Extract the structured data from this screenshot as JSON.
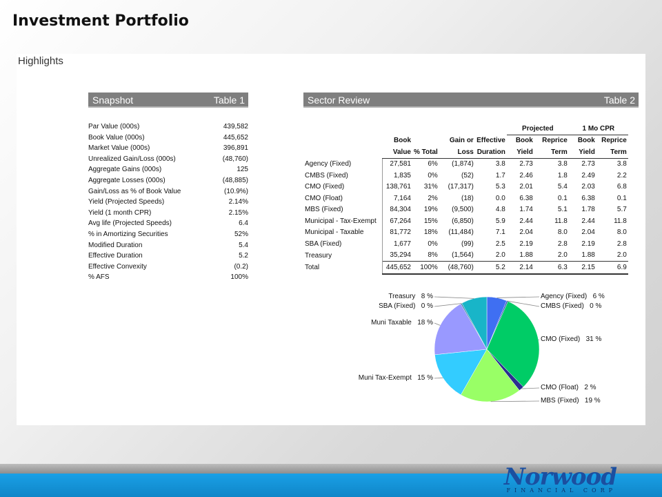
{
  "title": "Investment Portfolio",
  "section": "Highlights",
  "snapshot": {
    "header_left": "Snapshot",
    "header_right": "Table 1",
    "rows": [
      {
        "label": "Par Value (000s)",
        "value": "439,582"
      },
      {
        "label": "Book Value (000s)",
        "value": "445,652"
      },
      {
        "label": "Market Value (000s)",
        "value": "396,891"
      },
      {
        "label": "Unrealized Gain/Loss (000s)",
        "value": "(48,760)"
      },
      {
        "label": "Aggregate Gains (000s)",
        "value": "125"
      },
      {
        "label": "Aggregate Losses (000s)",
        "value": "(48,885)"
      },
      {
        "label": "Gain/Loss as % of Book Value",
        "value": "(10.9%)"
      },
      {
        "label": "Yield (Projected Speeds)",
        "value": "2.14%"
      },
      {
        "label": "Yield (1 month CPR)",
        "value": "2.15%"
      },
      {
        "label": "Avg life (Projected Speeds)",
        "value": "6.4"
      },
      {
        "label": "% in Amortizing Securities",
        "value": "52%"
      },
      {
        "label": "Modified Duration",
        "value": "5.4"
      },
      {
        "label": "Effective Duration",
        "value": "5.2"
      },
      {
        "label": "Effective Convexity",
        "value": "(0.2)"
      },
      {
        "label": "% AFS",
        "value": "100%"
      }
    ]
  },
  "sector": {
    "header_left": "Sector Review",
    "header_right": "Table 2",
    "group_projected": "Projected",
    "group_cpr": "1 Mo CPR",
    "col_h1": [
      "Book",
      "",
      "Gain or",
      "Effective",
      "Book",
      "Reprice",
      "Book",
      "Reprice"
    ],
    "col_h2": [
      "Value",
      "% Total",
      "Loss",
      "Duration",
      "Yield",
      "Term",
      "Yield",
      "Term"
    ],
    "rows": [
      {
        "label": "Agency (Fixed)",
        "cells": [
          "27,581",
          "6%",
          "(1,874)",
          "3.8",
          "2.73",
          "3.8",
          "2.73",
          "3.8"
        ]
      },
      {
        "label": "CMBS (Fixed)",
        "cells": [
          "1,835",
          "0%",
          "(52)",
          "1.7",
          "2.46",
          "1.8",
          "2.49",
          "2.2"
        ]
      },
      {
        "label": "CMO (Fixed)",
        "cells": [
          "138,761",
          "31%",
          "(17,317)",
          "5.3",
          "2.01",
          "5.4",
          "2.03",
          "6.8"
        ]
      },
      {
        "label": "CMO (Float)",
        "cells": [
          "7,164",
          "2%",
          "(18)",
          "0.0",
          "6.38",
          "0.1",
          "6.38",
          "0.1"
        ]
      },
      {
        "label": "MBS (Fixed)",
        "cells": [
          "84,304",
          "19%",
          "(9,500)",
          "4.8",
          "1.74",
          "5.1",
          "1.78",
          "5.7"
        ]
      },
      {
        "label": "Municipal - Tax-Exempt",
        "cells": [
          "67,264",
          "15%",
          "(6,850)",
          "5.9",
          "2.44",
          "11.8",
          "2.44",
          "11.8"
        ]
      },
      {
        "label": "Municipal - Taxable",
        "cells": [
          "81,772",
          "18%",
          "(11,484)",
          "7.1",
          "2.04",
          "8.0",
          "2.04",
          "8.0"
        ]
      },
      {
        "label": "SBA (Fixed)",
        "cells": [
          "1,677",
          "0%",
          "(99)",
          "2.5",
          "2.19",
          "2.8",
          "2.19",
          "2.8"
        ]
      },
      {
        "label": "Treasury",
        "cells": [
          "35,294",
          "8%",
          "(1,564)",
          "2.0",
          "1.88",
          "2.0",
          "1.88",
          "2.0"
        ]
      }
    ],
    "total": {
      "label": "Total",
      "cells": [
        "445,652",
        "100%",
        "(48,760)",
        "5.2",
        "2.14",
        "6.3",
        "2.15",
        "6.9"
      ]
    }
  },
  "chart_data": {
    "type": "pie",
    "title": "",
    "slices": [
      {
        "name": "Agency (Fixed)",
        "pct_label": "6 %",
        "value": 27581,
        "color": "#3f6ff2"
      },
      {
        "name": "CMBS (Fixed)",
        "pct_label": "0 %",
        "value": 1835,
        "color": "#2d44b8"
      },
      {
        "name": "CMO (Fixed)",
        "pct_label": "31 %",
        "value": 138761,
        "color": "#00cc66"
      },
      {
        "name": "CMO (Float)",
        "pct_label": "2 %",
        "value": 7164,
        "color": "#2b2f8f"
      },
      {
        "name": "MBS (Fixed)",
        "pct_label": "19 %",
        "value": 84304,
        "color": "#99ff66"
      },
      {
        "name": "Muni Tax-Exempt",
        "pct_label": "15 %",
        "value": 67264,
        "color": "#33ccff"
      },
      {
        "name": "Muni Taxable",
        "pct_label": "18 %",
        "value": 81772,
        "color": "#9999ff"
      },
      {
        "name": "SBA (Fixed)",
        "pct_label": "0 %",
        "value": 1677,
        "color": "#2c7ea0"
      },
      {
        "name": "Treasury",
        "pct_label": "8 %",
        "value": 35294,
        "color": "#18b5c8"
      }
    ]
  },
  "logo": {
    "name": "Norwood",
    "sub": "FINANCIAL CORP"
  }
}
